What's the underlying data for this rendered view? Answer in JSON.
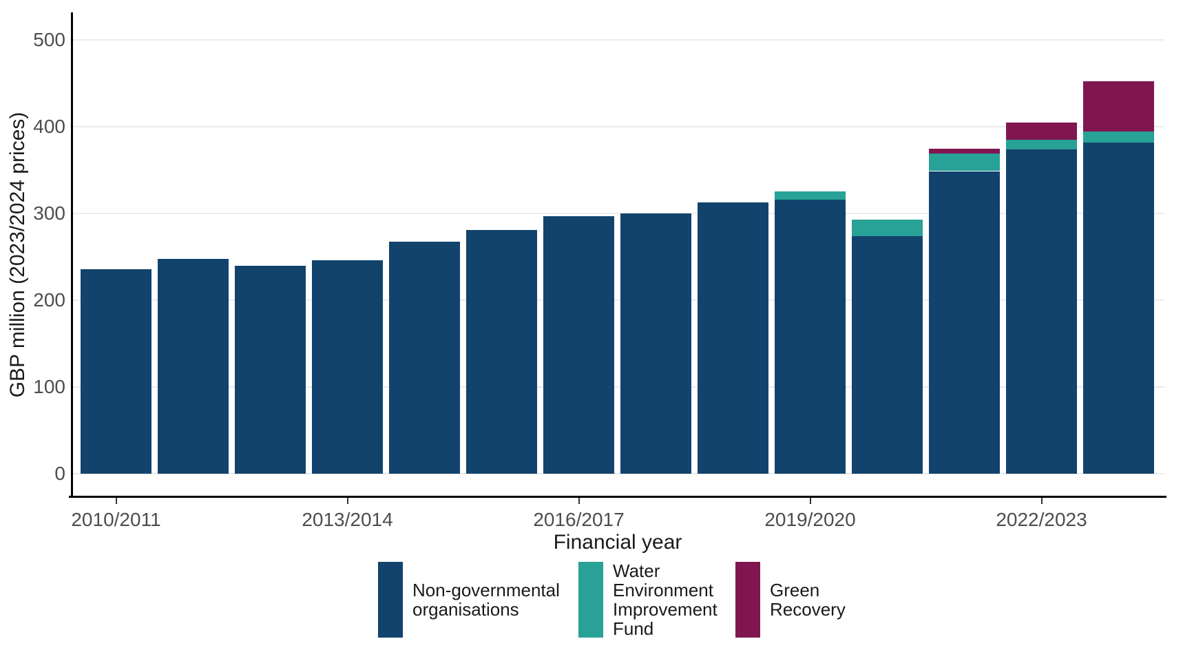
{
  "chart_data": {
    "type": "bar",
    "stacked": true,
    "title": "",
    "xlabel": "Financial year",
    "ylabel": "GBP million (2023/2024 prices)",
    "ylim": [
      0,
      500
    ],
    "yticks": [
      0,
      100,
      200,
      300,
      400,
      500
    ],
    "grid": "horizontal-major",
    "legend_position": "bottom",
    "categories": [
      "2010/2011",
      "2011/2012",
      "2012/2013",
      "2013/2014",
      "2014/2015",
      "2015/2016",
      "2016/2017",
      "2017/2018",
      "2018/2019",
      "2019/2020",
      "2020/2021",
      "2021/2022",
      "2022/2023",
      "2023/2024"
    ],
    "xtick_shown_labels": [
      "2010/2011",
      "2013/2014",
      "2016/2017",
      "2019/2020",
      "2022/2023"
    ],
    "xtick_shown_indices": [
      0,
      3,
      6,
      9,
      12
    ],
    "series": [
      {
        "name": "Non-governmental organisations",
        "color": "#12436D",
        "values": [
          236,
          248,
          240,
          246,
          268,
          281,
          297,
          300,
          313,
          316,
          274,
          349,
          374,
          382
        ]
      },
      {
        "name": "Water Environment Improvement Fund",
        "color": "#28A197",
        "values": [
          0,
          0,
          0,
          0,
          0,
          0,
          0,
          0,
          0,
          10,
          19,
          20,
          11,
          13
        ]
      },
      {
        "name": "Green Recovery",
        "color": "#801650",
        "values": [
          0,
          0,
          0,
          0,
          0,
          0,
          0,
          0,
          0,
          0,
          0,
          6,
          20,
          58
        ]
      }
    ],
    "stack_totals": [
      236,
      248,
      240,
      246,
      268,
      281,
      297,
      300,
      313,
      326,
      293,
      375,
      405,
      453
    ]
  },
  "legend": {
    "items": [
      {
        "label": "Non-governmental organisations",
        "label_lines": [
          "Non-governmental",
          "organisations"
        ],
        "color": "#12436D"
      },
      {
        "label": "Water Environment Improvement Fund",
        "label_lines": [
          "Water",
          "Environment",
          "Improvement",
          "Fund"
        ],
        "color": "#28A197"
      },
      {
        "label": "Green Recovery",
        "label_lines": [
          "Green",
          "Recovery"
        ],
        "color": "#801650"
      }
    ]
  },
  "colors": {
    "ngo_dark_blue": "#12436D",
    "weif_turquoise": "#28A197",
    "green_recovery_pink": "#801650",
    "gridline": "#ebebeb",
    "axis_text": "#4d4d4d",
    "axis_line": "#000000",
    "background": "#ffffff"
  }
}
